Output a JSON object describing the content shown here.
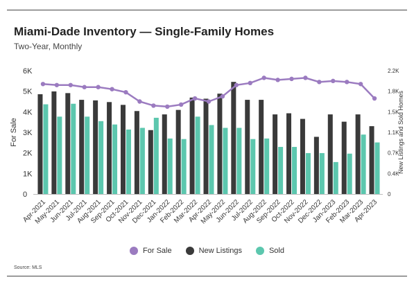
{
  "title": "Miami-Dade Inventory — Single-Family Homes",
  "subtitle": "Two-Year, Monthly",
  "source": "Source: MLS",
  "colors": {
    "for_sale": "#9b7bc0",
    "new_listings": "#3a3a3a",
    "sold": "#5cc7ae"
  },
  "chart_data": {
    "type": "bar",
    "categories": [
      "Apr-2021",
      "May-2021",
      "Jun-2021",
      "Jul-2021",
      "Aug-2021",
      "Sep-2021",
      "Oct-2021",
      "Nov-2021",
      "Dec-2021",
      "Jan-2022",
      "Feb-2022",
      "Mar-2022",
      "Apr-2022",
      "May-2022",
      "Jun-2022",
      "Jul-2022",
      "Aug-2022",
      "Sep-2022",
      "Oct-2022",
      "Nov-2022",
      "Dec-2022",
      "Jan-2023",
      "Feb-2023",
      "Mar-2023",
      "Apr-2023"
    ],
    "ylabel": "For Sale",
    "y2label": "New Listings and Sold Homes",
    "ylim": [
      0,
      6000
    ],
    "y2lim": [
      0,
      2200
    ],
    "yticks": [
      "0",
      "1K",
      "2K",
      "3K",
      "4K",
      "5K",
      "6K"
    ],
    "y2ticks": [
      "0",
      "0.4K",
      "0.7K",
      "1.1K",
      "1.5K",
      "1.8K",
      "2.2K"
    ],
    "grid": false,
    "legend_position": "bottom",
    "series": [
      {
        "name": "For Sale",
        "type": "line",
        "axis": "left",
        "values": [
          5350,
          5300,
          5300,
          5200,
          5200,
          5100,
          4950,
          4500,
          4300,
          4250,
          4350,
          4650,
          4500,
          4750,
          5300,
          5400,
          5650,
          5550,
          5600,
          5650,
          5450,
          5500,
          5450,
          5350,
          4650
        ]
      },
      {
        "name": "New Listings",
        "type": "bar",
        "axis": "right",
        "values": [
          1780,
          1830,
          1800,
          1680,
          1670,
          1640,
          1590,
          1480,
          1140,
          1420,
          1500,
          1720,
          1700,
          1790,
          2000,
          1680,
          1680,
          1420,
          1440,
          1340,
          1020,
          1420,
          1290,
          1420,
          1210
        ]
      },
      {
        "name": "Sold",
        "type": "bar",
        "axis": "right",
        "values": [
          1600,
          1380,
          1610,
          1380,
          1300,
          1240,
          1150,
          1180,
          1360,
          990,
          980,
          1380,
          1230,
          1180,
          1180,
          980,
          990,
          840,
          840,
          730,
          730,
          570,
          720,
          1060,
          920
        ]
      }
    ]
  }
}
